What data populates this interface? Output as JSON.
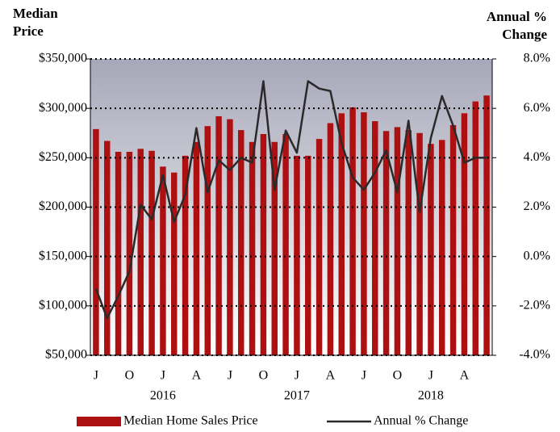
{
  "chart_data": {
    "type": "bar_line",
    "y_title": "Median Price",
    "y2_title": "Annual % Change",
    "categories": [
      "J",
      null,
      null,
      "O",
      null,
      null,
      "J",
      null,
      null,
      "A",
      null,
      null,
      "J",
      null,
      null,
      "O",
      null,
      null,
      "J",
      null,
      null,
      "A",
      null,
      null,
      "J",
      null,
      null,
      "O",
      null,
      null,
      "J",
      null,
      null,
      "A",
      null,
      null
    ],
    "category_years": [
      null,
      null,
      null,
      null,
      null,
      null,
      "2016",
      null,
      null,
      null,
      null,
      null,
      null,
      null,
      null,
      null,
      null,
      null,
      "2017",
      null,
      null,
      null,
      null,
      null,
      null,
      null,
      null,
      null,
      null,
      null,
      "2018",
      null,
      null,
      null,
      null,
      null
    ],
    "series": [
      {
        "name": "Median Home Sales Price",
        "color": "#ad1010",
        "type": "bar",
        "values": [
          279000,
          267000,
          256000,
          256000,
          259000,
          257000,
          241000,
          235000,
          252000,
          266000,
          282000,
          292000,
          289000,
          278000,
          266000,
          274000,
          266000,
          274000,
          252000,
          252000,
          269000,
          285000,
          295000,
          301000,
          296000,
          287000,
          277000,
          281000,
          278000,
          275000,
          264000,
          268000,
          283000,
          295000,
          307000,
          313000
        ]
      },
      {
        "name": "Annual % Change",
        "color": "#2a2a2a",
        "type": "line",
        "axis": "y2",
        "values": [
          -1.3,
          -2.5,
          -1.6,
          -0.6,
          2.1,
          1.5,
          3.3,
          1.4,
          2.5,
          5.2,
          2.6,
          3.9,
          3.5,
          4.0,
          3.8,
          7.1,
          2.7,
          5.1,
          4.2,
          7.1,
          6.8,
          6.7,
          4.6,
          3.2,
          2.7,
          3.4,
          4.3,
          2.6,
          5.5,
          1.8,
          4.8,
          6.5,
          5.3,
          3.8,
          4.0,
          4.0
        ]
      }
    ],
    "ylim": [
      50000,
      350000
    ],
    "yticks": [
      {
        "value": 50000,
        "label": "$50,000"
      },
      {
        "value": 100000,
        "label": "$100,000"
      },
      {
        "value": 150000,
        "label": "$150,000"
      },
      {
        "value": 200000,
        "label": "$200,000"
      },
      {
        "value": 250000,
        "label": "$250,000"
      },
      {
        "value": 300000,
        "label": "$300,000"
      },
      {
        "value": 350000,
        "label": "$350,000"
      }
    ],
    "y2lim": [
      -4,
      8
    ],
    "y2ticks": [
      {
        "value": -4,
        "label": "-4.0%"
      },
      {
        "value": -2,
        "label": "-2.0%"
      },
      {
        "value": 0,
        "label": "0.0%"
      },
      {
        "value": 2,
        "label": "2.0%"
      },
      {
        "value": 4,
        "label": "4.0%"
      },
      {
        "value": 6,
        "label": "6.0%"
      },
      {
        "value": 8,
        "label": "8.0%"
      }
    ],
    "grid": true,
    "legend": "bottom"
  }
}
